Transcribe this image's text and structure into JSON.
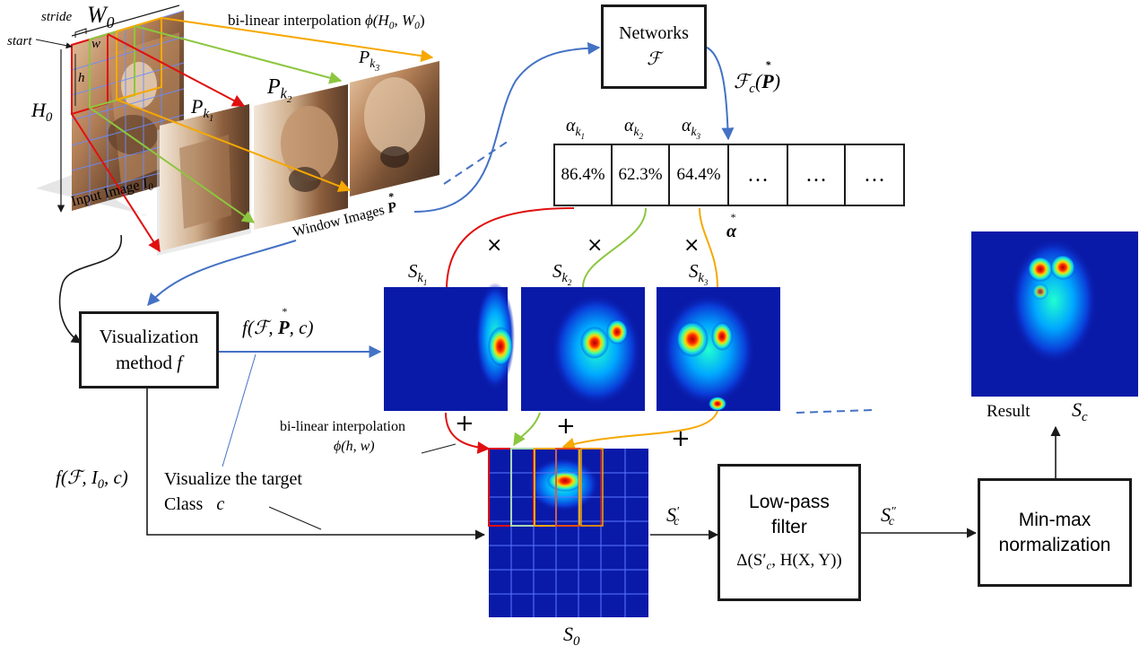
{
  "input": {
    "stride": "stride",
    "W0": "W",
    "W0_sub": "0",
    "start": "start",
    "w": "w",
    "h": "h",
    "H0": "H",
    "H0_sub": "0",
    "caption": "Input Image",
    "caption_sym": "I",
    "caption_sub": "0"
  },
  "interp_top": {
    "text": "bi-linear interpolation",
    "func": "ϕ(H",
    "func_sub": "0",
    "func_end": ", W",
    "func_sub2": "0",
    "func_close": ")"
  },
  "windows": {
    "p1": "P",
    "p1_sub": "k",
    "p1_subsub": "1",
    "p2": "P",
    "p2_sub": "k",
    "p2_subsub": "2",
    "p3": "P",
    "p3_sub": "k",
    "p3_subsub": "3",
    "caption": "Window Images",
    "caption_sym": "P"
  },
  "networks": {
    "title": "Networks",
    "symbol": "ℱ"
  },
  "output_label": {
    "f": "ℱ",
    "sub": "c",
    "args": "(",
    "sym": "P",
    "close": ")"
  },
  "scores": {
    "alpha1": "α",
    "a1_sub": "k",
    "a1_subsub": "1",
    "alpha2": "α",
    "a2_sub": "k",
    "a2_subsub": "2",
    "alpha3": "α",
    "a3_sub": "k",
    "a3_subsub": "3",
    "values": [
      "86.4%",
      "62.3%",
      "64.4%",
      "…",
      "…",
      "…"
    ],
    "alpha_star": "α"
  },
  "saliency": {
    "s1": "S",
    "s1_sub": "k",
    "s1_subsub": "1",
    "s2": "S",
    "s2_sub": "k",
    "s2_subsub": "2",
    "s3": "S",
    "s3_sub": "k",
    "s3_subsub": "3"
  },
  "times": "×",
  "plus": "+",
  "visualization": {
    "line1": "Visualization",
    "line2": "method",
    "sym": "f"
  },
  "vis_output": {
    "text": "f(ℱ, ",
    "sym": "P",
    "end": ", c)"
  },
  "interp_bottom": {
    "line1": "bi-linear interpolation",
    "line2": "ϕ(h, w)"
  },
  "full_image_label": {
    "text": "f(ℱ, I",
    "sub": "0",
    "end": ", c)"
  },
  "visualize_target": {
    "line1": "Visualize  the target",
    "line2": "Class",
    "sym": "c"
  },
  "s0": {
    "sym": "S",
    "sub": "0"
  },
  "sc_prime": {
    "sym": "S",
    "sub": "c",
    "prime": "′"
  },
  "lowpass": {
    "line1": "Low-pass",
    "line2": "filter",
    "formula": "Δ(S′",
    "formula_sub": "c",
    "formula_end": ", H(X, Y))"
  },
  "sc_dprime": {
    "sym": "S",
    "sub": "c",
    "prime": "″"
  },
  "minmax": {
    "line1": "Min-max",
    "line2": "normalization"
  },
  "result": {
    "label": "Result",
    "sym": "S",
    "sub": "c"
  },
  "colors": {
    "red": "#e01010",
    "green": "#8cc63f",
    "orange": "#f6a800",
    "blue": "#4472c4",
    "heat_bg": "#0a1aa8"
  }
}
